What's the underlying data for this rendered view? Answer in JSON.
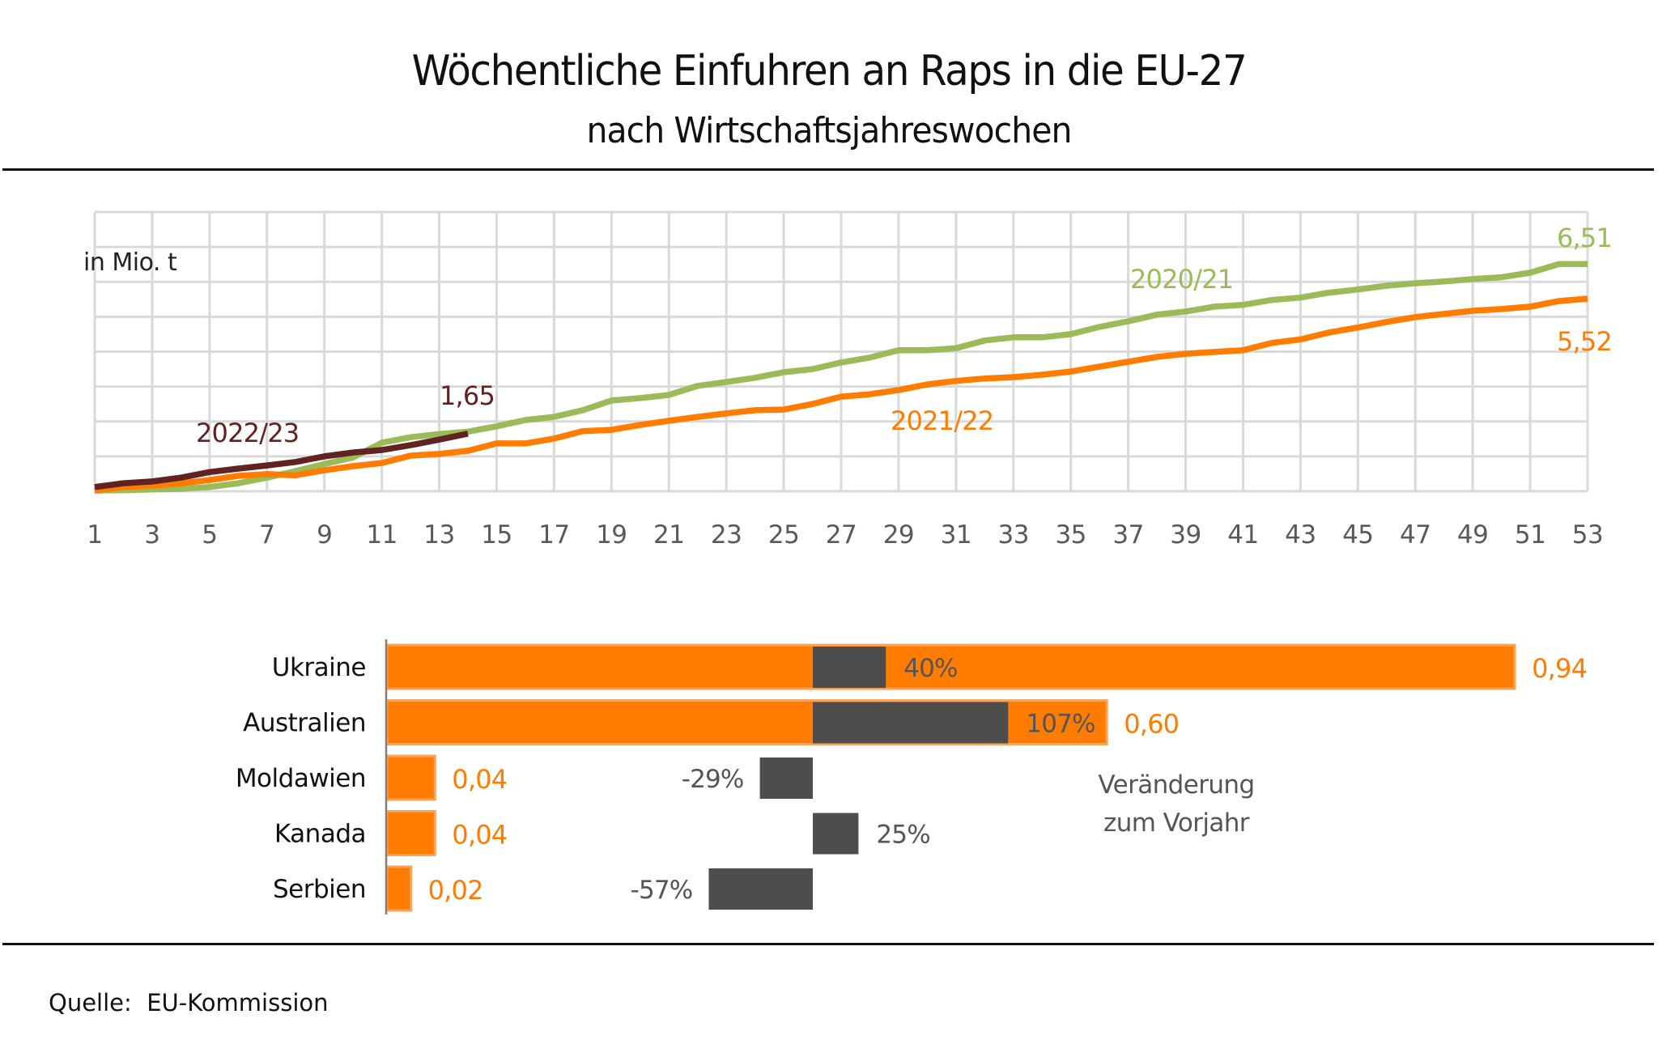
{
  "header": {
    "title": "Wöchentliche Einfuhren an Raps in die EU-27",
    "subtitle": "nach Wirtschaftsjahreswochen"
  },
  "footer": {
    "source": "Quelle:  EU-Kommission"
  },
  "colors": {
    "series_2020_21": "#9bbb59",
    "series_2021_22": "#ff7c00",
    "series_2022_23": "#612222",
    "bar_volume": "#ff7c00",
    "bar_volume_border": "#f8a35a",
    "bar_change": "#4d4d4d",
    "grid": "#d9d9d9",
    "tick_text": "#595959"
  },
  "chart_data": [
    {
      "type": "line",
      "title": "Wöchentliche Einfuhren an Raps in die EU-27",
      "subtitle": "nach Wirtschaftsjahreswochen",
      "ylabel": "in Mio. t",
      "xlabel": "",
      "x_ticks": [
        "1",
        "3",
        "5",
        "7",
        "9",
        "11",
        "13",
        "15",
        "17",
        "19",
        "21",
        "23",
        "25",
        "27",
        "29",
        "31",
        "33",
        "35",
        "37",
        "39",
        "41",
        "43",
        "45",
        "47",
        "49",
        "51",
        "53"
      ],
      "xlim": [
        1,
        53
      ],
      "ylim": [
        0,
        8
      ],
      "y_grid_step": 1,
      "grid": true,
      "legend": "inline labels",
      "series": [
        {
          "name": "2020/21",
          "end_label": "6,51",
          "x": [
            1,
            2,
            3,
            4,
            5,
            6,
            7,
            8,
            9,
            10,
            11,
            12,
            13,
            14,
            15,
            16,
            17,
            18,
            19,
            20,
            21,
            22,
            23,
            24,
            25,
            26,
            27,
            28,
            29,
            30,
            31,
            32,
            33,
            34,
            35,
            36,
            37,
            38,
            39,
            40,
            41,
            42,
            43,
            44,
            45,
            46,
            47,
            48,
            49,
            50,
            51,
            52,
            53
          ],
          "values": [
            0.02,
            0.03,
            0.05,
            0.07,
            0.12,
            0.23,
            0.39,
            0.58,
            0.78,
            0.97,
            1.39,
            1.55,
            1.64,
            1.71,
            1.86,
            2.04,
            2.13,
            2.32,
            2.6,
            2.67,
            2.76,
            3.02,
            3.13,
            3.25,
            3.41,
            3.5,
            3.69,
            3.83,
            4.04,
            4.04,
            4.1,
            4.32,
            4.41,
            4.41,
            4.5,
            4.71,
            4.87,
            5.06,
            5.15,
            5.29,
            5.34,
            5.48,
            5.55,
            5.69,
            5.78,
            5.89,
            5.96,
            6.01,
            6.08,
            6.13,
            6.26,
            6.51,
            6.51
          ]
        },
        {
          "name": "2021/22",
          "end_label": "5,52",
          "x": [
            1,
            2,
            3,
            4,
            5,
            6,
            7,
            8,
            9,
            10,
            11,
            12,
            13,
            14,
            15,
            16,
            17,
            18,
            19,
            20,
            21,
            22,
            23,
            24,
            25,
            26,
            27,
            28,
            29,
            30,
            31,
            32,
            33,
            34,
            35,
            36,
            37,
            38,
            39,
            40,
            41,
            42,
            43,
            44,
            45,
            46,
            47,
            48,
            49,
            50,
            51,
            52,
            53
          ],
          "values": [
            0.02,
            0.12,
            0.16,
            0.23,
            0.32,
            0.44,
            0.49,
            0.46,
            0.6,
            0.72,
            0.81,
            1.02,
            1.07,
            1.16,
            1.37,
            1.37,
            1.51,
            1.72,
            1.76,
            1.9,
            2.02,
            2.13,
            2.23,
            2.32,
            2.34,
            2.5,
            2.71,
            2.78,
            2.9,
            3.06,
            3.16,
            3.23,
            3.27,
            3.34,
            3.43,
            3.57,
            3.71,
            3.85,
            3.94,
            3.99,
            4.04,
            4.25,
            4.35,
            4.55,
            4.69,
            4.85,
            4.99,
            5.08,
            5.17,
            5.22,
            5.29,
            5.45,
            5.52
          ]
        },
        {
          "name": "2022/23",
          "end_label": "1,65",
          "x": [
            1,
            2,
            3,
            4,
            5,
            6,
            7,
            8,
            9,
            10,
            11,
            12,
            13,
            14
          ],
          "values": [
            0.12,
            0.23,
            0.28,
            0.39,
            0.55,
            0.65,
            0.74,
            0.84,
            1.0,
            1.11,
            1.18,
            1.32,
            1.48,
            1.65
          ]
        }
      ]
    },
    {
      "type": "bar",
      "orientation": "horizontal",
      "categories": [
        "Ukraine",
        "Australien",
        "Moldawien",
        "Kanada",
        "Serbien"
      ],
      "series": [
        {
          "name": "Einfuhren (Mio. t)",
          "values": [
            0.94,
            0.6,
            0.04,
            0.04,
            0.02
          ],
          "labels": [
            "0,94",
            "0,60",
            "0,04",
            "0,04",
            "0,02"
          ]
        },
        {
          "name": "Veränderung zum Vorjahr",
          "unit": "%",
          "values": [
            40,
            107,
            -29,
            25,
            -57
          ],
          "labels": [
            "40%",
            "107%",
            "-29%",
            "25%",
            "-57%"
          ]
        }
      ],
      "annotation": [
        "Veränderung",
        "zum Vorjahr"
      ]
    }
  ]
}
